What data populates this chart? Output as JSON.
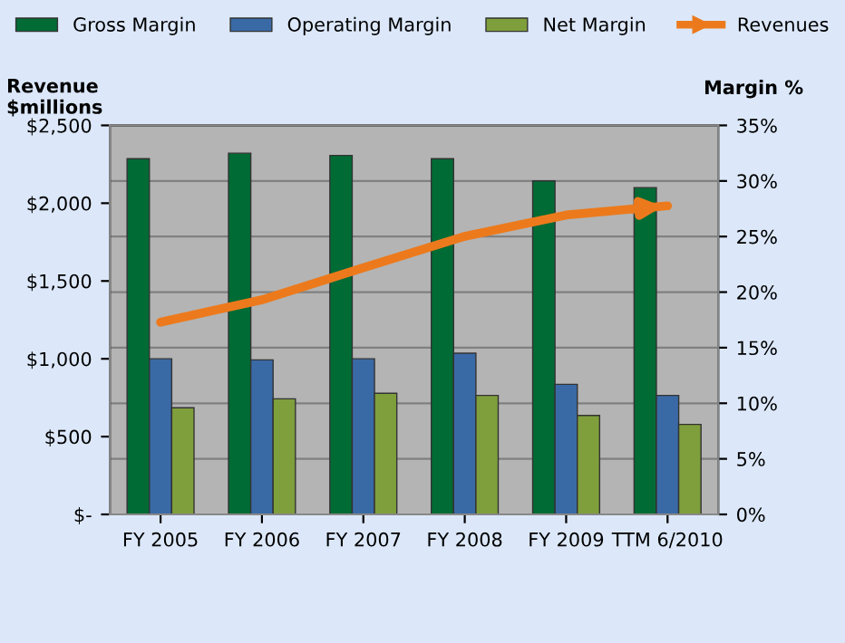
{
  "chart_data": {
    "type": "bar",
    "ylabel": "Revenue\n$millions",
    "y2label": "Margin %",
    "categories": [
      "FY 2005",
      "FY 2006",
      "FY 2007",
      "FY 2008",
      "FY 2009",
      "TTM 6/2010"
    ],
    "series": [
      {
        "name": "Gross Margin",
        "color": "#006b35",
        "axis": "y2",
        "values": [
          32.0,
          32.5,
          32.3,
          32.0,
          30.0,
          29.4
        ]
      },
      {
        "name": "Operating Margin",
        "color": "#3a6aa6",
        "axis": "y2",
        "values": [
          14.0,
          13.9,
          14.0,
          14.5,
          11.7,
          10.7
        ]
      },
      {
        "name": "Net Margin",
        "color": "#7f9f3c",
        "axis": "y2",
        "values": [
          9.6,
          10.4,
          10.9,
          10.7,
          8.9,
          8.1
        ]
      },
      {
        "name": "Revenues",
        "type": "line",
        "color": "#ec7a1c",
        "axis": "y",
        "values": [
          1235,
          1379,
          1585,
          1787,
          1924,
          1983
        ]
      }
    ],
    "ylim": [
      0,
      2500
    ],
    "yticks": [
      {
        "value": 0,
        "label": "$-"
      },
      {
        "value": 500,
        "label": "$500"
      },
      {
        "value": 1000,
        "label": "$1,000"
      },
      {
        "value": 1500,
        "label": "$1,500"
      },
      {
        "value": 2000,
        "label": "$2,000"
      },
      {
        "value": 2500,
        "label": "$2,500"
      }
    ],
    "y2lim": [
      0,
      35
    ],
    "y2ticks": [
      {
        "value": 0,
        "label": "0%"
      },
      {
        "value": 5,
        "label": "5%"
      },
      {
        "value": 10,
        "label": "10%"
      },
      {
        "value": 15,
        "label": "15%"
      },
      {
        "value": 20,
        "label": "20%"
      },
      {
        "value": 25,
        "label": "25%"
      },
      {
        "value": 30,
        "label": "30%"
      },
      {
        "value": 35,
        "label": "35%"
      }
    ],
    "grid": "y",
    "legend": "top"
  }
}
